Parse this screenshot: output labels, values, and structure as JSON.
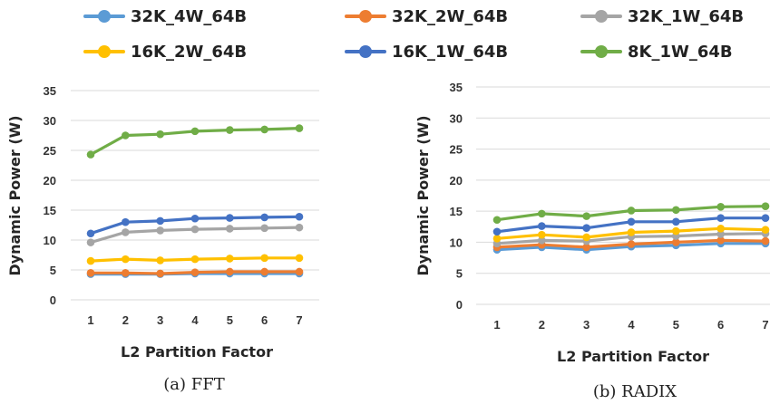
{
  "colors": {
    "32K_4W_64B": "#5b9bd5",
    "32K_2W_64B": "#ed7d31",
    "32K_1W_64B": "#a5a5a5",
    "16K_2W_64B": "#ffc000",
    "16K_1W_64B": "#4472c4",
    "8K_1W_64B": "#70ad47"
  },
  "legend": [
    "32K_4W_64B",
    "32K_2W_64B",
    "32K_1W_64B",
    "16K_2W_64B",
    "16K_1W_64B",
    "8K_1W_64B"
  ],
  "chart_data": [
    {
      "type": "line",
      "caption": "(a) FFT",
      "xlabel": "L2 Partition Factor",
      "ylabel": "Dynamic Power (W)",
      "x": [
        1,
        2,
        3,
        4,
        5,
        6,
        7
      ],
      "yticks": [
        0,
        5,
        10,
        15,
        20,
        25,
        30,
        35
      ],
      "ylim": [
        0,
        35
      ],
      "grid": "horizontal",
      "series": [
        {
          "name": "32K_4W_64B",
          "values": [
            4.3,
            4.3,
            4.3,
            4.4,
            4.4,
            4.4,
            4.4
          ]
        },
        {
          "name": "32K_2W_64B",
          "values": [
            4.5,
            4.5,
            4.4,
            4.6,
            4.7,
            4.7,
            4.7
          ]
        },
        {
          "name": "32K_1W_64B",
          "values": [
            9.6,
            11.3,
            11.6,
            11.8,
            11.9,
            12.0,
            12.1
          ]
        },
        {
          "name": "16K_2W_64B",
          "values": [
            6.5,
            6.8,
            6.6,
            6.8,
            6.9,
            7.0,
            7.0
          ]
        },
        {
          "name": "16K_1W_64B",
          "values": [
            11.1,
            13.0,
            13.2,
            13.6,
            13.7,
            13.8,
            13.9
          ]
        },
        {
          "name": "8K_1W_64B",
          "values": [
            24.3,
            27.5,
            27.7,
            28.2,
            28.4,
            28.5,
            28.7
          ]
        }
      ]
    },
    {
      "type": "line",
      "caption": "(b) RADIX",
      "xlabel": "L2 Partition Factor",
      "ylabel": "Dynamic Power (W)",
      "x": [
        1,
        2,
        3,
        4,
        5,
        6,
        7
      ],
      "yticks": [
        0,
        5,
        10,
        15,
        20,
        25,
        30,
        35
      ],
      "ylim": [
        0,
        35
      ],
      "grid": "horizontal",
      "series": [
        {
          "name": "32K_4W_64B",
          "values": [
            8.8,
            9.2,
            8.8,
            9.3,
            9.5,
            9.8,
            9.8
          ]
        },
        {
          "name": "32K_2W_64B",
          "values": [
            9.2,
            9.6,
            9.2,
            9.7,
            10.0,
            10.3,
            10.2
          ]
        },
        {
          "name": "32K_1W_64B",
          "values": [
            9.8,
            10.3,
            10.2,
            10.9,
            11.0,
            11.3,
            11.4
          ]
        },
        {
          "name": "16K_2W_64B",
          "values": [
            10.6,
            11.2,
            10.8,
            11.6,
            11.8,
            12.2,
            12.0
          ]
        },
        {
          "name": "16K_1W_64B",
          "values": [
            11.7,
            12.6,
            12.3,
            13.3,
            13.3,
            13.9,
            13.9
          ]
        },
        {
          "name": "8K_1W_64B",
          "values": [
            13.6,
            14.6,
            14.2,
            15.1,
            15.2,
            15.7,
            15.8
          ]
        }
      ]
    }
  ]
}
